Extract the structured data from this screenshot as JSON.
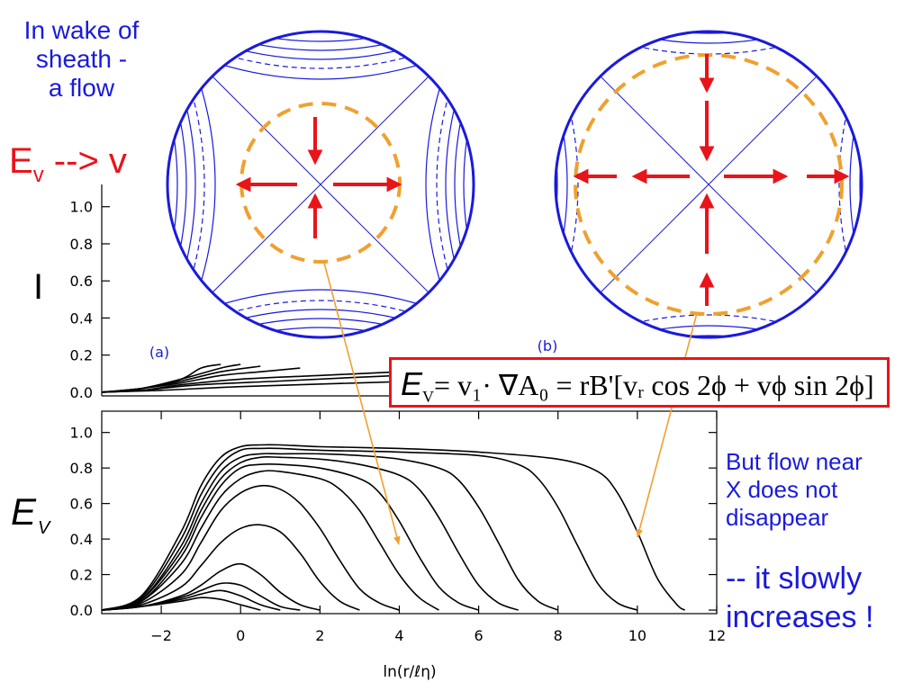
{
  "notes": {
    "top_left": [
      "In wake of",
      "sheath -",
      "a flow"
    ],
    "ev_to_v": {
      "base": "E",
      "sub": "v",
      "rest": " --> v"
    },
    "right_lines_a": [
      "But flow near",
      "X does not",
      "disappear"
    ],
    "right_lines_b": [
      "-- it slowly",
      "increases !"
    ]
  },
  "formula": {
    "lhs": "E",
    "lhs_sub": "V",
    "rhs": "= v₁· ∇A₀ = rB'[vᵣ cos 2ϕ + vϕ sin 2ϕ]"
  },
  "panel_labels": {
    "a": "(a)",
    "b": "(b)"
  },
  "colors": {
    "contour": "#1a1adc",
    "separatrix_ring": "#f0a030",
    "flow_arrow": "#e8141a",
    "pointer_line": "#f0a030",
    "curve": "#000000"
  },
  "chart_data": [
    {
      "type": "line",
      "title": "",
      "ylabel": "I",
      "xlabel": "",
      "xlim": [
        -3.5,
        12
      ],
      "ylim": [
        -0.02,
        1.12
      ],
      "yticks": [
        0.0,
        0.2,
        0.4,
        0.6,
        0.8,
        1.0
      ],
      "ytick_labels": [
        "0.0",
        "0.2",
        "0.4",
        "0.6",
        "0.8",
        "1.0"
      ],
      "series": [
        {
          "x": [
            -3.5,
            -2.5,
            -1.5,
            -1.0,
            -0.5
          ],
          "y": [
            0.0,
            0.02,
            0.07,
            0.13,
            0.15
          ]
        },
        {
          "x": [
            -3.5,
            -2.5,
            -1.5,
            -0.5,
            0.0
          ],
          "y": [
            0.0,
            0.02,
            0.07,
            0.13,
            0.15
          ]
        },
        {
          "x": [
            -3.5,
            -2.5,
            -1.5,
            -0.5,
            0.5
          ],
          "y": [
            0.0,
            0.02,
            0.06,
            0.11,
            0.14
          ]
        },
        {
          "x": [
            -3.5,
            -2.5,
            -1.5,
            -0.5,
            0.5,
            1.5
          ],
          "y": [
            0.0,
            0.02,
            0.05,
            0.09,
            0.11,
            0.13
          ]
        },
        {
          "x": [
            -3.5,
            -2.5,
            -1.5,
            0.0,
            2.0,
            4.0
          ],
          "y": [
            0.0,
            0.01,
            0.04,
            0.07,
            0.09,
            0.11
          ]
        },
        {
          "x": [
            -3.5,
            -2.5,
            -1.0,
            1.0,
            4.0,
            7.0,
            12.0
          ],
          "y": [
            0.0,
            0.01,
            0.04,
            0.06,
            0.09,
            0.11,
            0.13
          ]
        },
        {
          "x": [
            -3.5,
            -2.0,
            0.0,
            3.0,
            6.0,
            9.0,
            12.0
          ],
          "y": [
            0.0,
            0.01,
            0.03,
            0.05,
            0.07,
            0.09,
            0.11
          ]
        }
      ]
    },
    {
      "type": "line",
      "title": "",
      "ylabel": "E_V",
      "xlabel": "ln(r/ℓη)",
      "xlim": [
        -3.5,
        12
      ],
      "ylim": [
        -0.02,
        1.12
      ],
      "xticks": [
        -2,
        0,
        2,
        4,
        6,
        8,
        10,
        12
      ],
      "xtick_labels": [
        "−2",
        "0",
        "2",
        "4",
        "6",
        "8",
        "10",
        "12"
      ],
      "yticks": [
        0.0,
        0.2,
        0.4,
        0.6,
        0.8,
        1.0
      ],
      "ytick_labels": [
        "0.0",
        "0.2",
        "0.4",
        "0.6",
        "0.8",
        "1.0"
      ],
      "series": [
        {
          "x": [
            -3.5,
            -2.5,
            -1.5,
            -1.0,
            -0.5,
            0.0,
            0.5
          ],
          "y": [
            0.0,
            0.02,
            0.05,
            0.07,
            0.06,
            0.03,
            0.0
          ]
        },
        {
          "x": [
            -3.5,
            -2.5,
            -1.5,
            -1.0,
            -0.5,
            0.0,
            0.5,
            1.0
          ],
          "y": [
            0.0,
            0.02,
            0.06,
            0.09,
            0.11,
            0.08,
            0.03,
            0.0
          ]
        },
        {
          "x": [
            -3.5,
            -2.5,
            -1.5,
            -1.0,
            -0.5,
            0.0,
            0.5,
            1.0,
            1.5
          ],
          "y": [
            0.0,
            0.02,
            0.07,
            0.11,
            0.15,
            0.14,
            0.08,
            0.02,
            0.0
          ]
        },
        {
          "x": [
            -3.5,
            -2.5,
            -1.5,
            -1.0,
            -0.5,
            0.0,
            0.5,
            1.0,
            1.5,
            2.0
          ],
          "y": [
            0.0,
            0.02,
            0.08,
            0.14,
            0.22,
            0.26,
            0.2,
            0.1,
            0.03,
            0.0
          ]
        },
        {
          "x": [
            -3.5,
            -2.5,
            -1.5,
            -1.0,
            -0.5,
            0.0,
            0.5,
            1.0,
            1.5,
            2.0,
            2.5,
            3.0
          ],
          "y": [
            0.0,
            0.03,
            0.13,
            0.25,
            0.38,
            0.46,
            0.48,
            0.44,
            0.32,
            0.16,
            0.05,
            0.0
          ]
        },
        {
          "x": [
            -3.5,
            -2.5,
            -1.5,
            -1.0,
            -0.5,
            0.0,
            0.5,
            1.0,
            1.5,
            2.0,
            2.5,
            3.0,
            3.5,
            4.0
          ],
          "y": [
            0.0,
            0.04,
            0.2,
            0.38,
            0.56,
            0.66,
            0.7,
            0.68,
            0.6,
            0.46,
            0.28,
            0.12,
            0.04,
            0.0
          ]
        },
        {
          "x": [
            -3.5,
            -2.5,
            -1.5,
            -1.0,
            -0.5,
            0.0,
            0.5,
            1.0,
            2.0,
            2.5,
            3.0,
            3.5,
            4.0,
            4.5,
            5.0
          ],
          "y": [
            0.0,
            0.05,
            0.26,
            0.46,
            0.64,
            0.74,
            0.78,
            0.78,
            0.74,
            0.68,
            0.56,
            0.38,
            0.2,
            0.07,
            0.0
          ]
        },
        {
          "x": [
            -3.5,
            -2.5,
            -1.5,
            -1.0,
            -0.5,
            0.0,
            0.5,
            1.0,
            2.0,
            3.0,
            3.5,
            4.0,
            4.5,
            5.0,
            5.5,
            6.0
          ],
          "y": [
            0.0,
            0.05,
            0.3,
            0.52,
            0.7,
            0.8,
            0.82,
            0.82,
            0.8,
            0.74,
            0.66,
            0.5,
            0.3,
            0.13,
            0.04,
            0.0
          ]
        },
        {
          "x": [
            -3.5,
            -2.5,
            -1.5,
            -1.0,
            -0.5,
            0.0,
            0.5,
            1.0,
            2.0,
            3.0,
            4.0,
            4.5,
            5.0,
            5.5,
            6.0,
            6.5,
            7.0
          ],
          "y": [
            0.0,
            0.06,
            0.33,
            0.56,
            0.74,
            0.83,
            0.86,
            0.86,
            0.85,
            0.82,
            0.76,
            0.68,
            0.52,
            0.32,
            0.14,
            0.04,
            0.0
          ]
        },
        {
          "x": [
            -3.5,
            -2.5,
            -1.5,
            -1.0,
            -0.5,
            0.0,
            0.5,
            1.0,
            2.0,
            3.0,
            4.0,
            5.0,
            5.5,
            6.0,
            6.5,
            7.0,
            7.5,
            8.0
          ],
          "y": [
            0.0,
            0.06,
            0.36,
            0.6,
            0.78,
            0.86,
            0.88,
            0.88,
            0.88,
            0.87,
            0.85,
            0.8,
            0.73,
            0.58,
            0.38,
            0.17,
            0.05,
            0.0
          ]
        },
        {
          "x": [
            -3.5,
            -2.5,
            -1.5,
            -1.0,
            -0.5,
            0.0,
            0.5,
            1.0,
            2.0,
            4.0,
            6.0,
            7.0,
            7.5,
            8.0,
            8.5,
            9.0,
            9.5,
            10.0
          ],
          "y": [
            0.0,
            0.07,
            0.4,
            0.65,
            0.82,
            0.9,
            0.91,
            0.91,
            0.9,
            0.89,
            0.87,
            0.82,
            0.74,
            0.58,
            0.36,
            0.15,
            0.04,
            0.0
          ]
        },
        {
          "x": [
            -3.5,
            -2.5,
            -1.5,
            -1.0,
            -0.5,
            0.0,
            0.5,
            1.0,
            2.0,
            4.0,
            6.0,
            8.0,
            9.0,
            9.5,
            10.0,
            10.5,
            11.0,
            11.2
          ],
          "y": [
            0.0,
            0.08,
            0.44,
            0.7,
            0.86,
            0.92,
            0.93,
            0.93,
            0.92,
            0.91,
            0.89,
            0.85,
            0.78,
            0.66,
            0.44,
            0.18,
            0.03,
            0.0
          ]
        }
      ]
    }
  ]
}
